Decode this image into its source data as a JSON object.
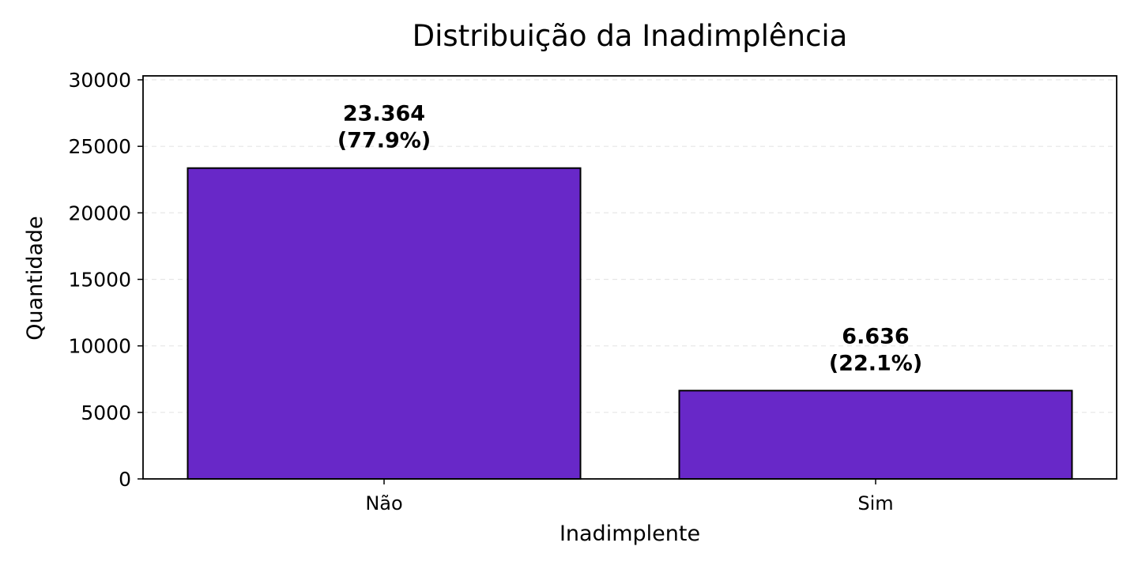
{
  "chart_data": {
    "type": "bar",
    "title": "Distribuição da Inadimplência",
    "xlabel": "Inadimplente",
    "ylabel": "Quantidade",
    "categories": [
      "Não",
      "Sim"
    ],
    "values": [
      23364,
      6636
    ],
    "value_labels": [
      "23.364",
      "6.636"
    ],
    "percent_labels": [
      "(77.9%)",
      "(22.1%)"
    ],
    "ylim": [
      0,
      30000
    ],
    "yticks": [
      0,
      5000,
      10000,
      15000,
      20000,
      25000,
      30000
    ],
    "ytick_labels": [
      "0",
      "5000",
      "10000",
      "15000",
      "20000",
      "25000",
      "30000"
    ],
    "grid": true,
    "bar_color": "#6828c8",
    "edge_color": "#000000"
  }
}
